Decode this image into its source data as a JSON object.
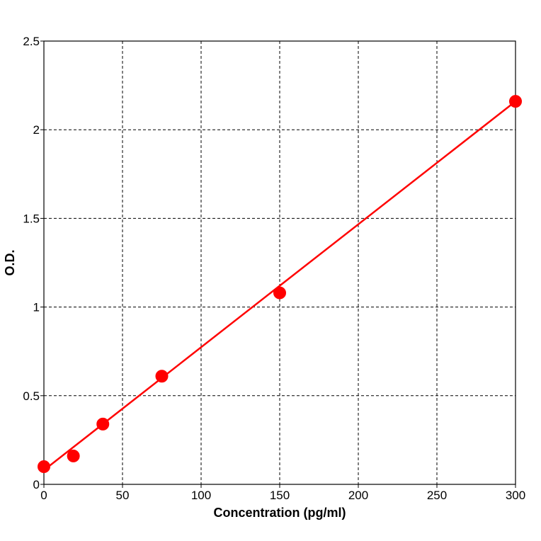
{
  "chart_data": {
    "type": "scatter",
    "title": "",
    "xlabel": "Concentration (pg/ml)",
    "ylabel": "O.D.",
    "xlim": [
      0,
      300
    ],
    "ylim": [
      0,
      2.5
    ],
    "x_ticks": [
      0,
      50,
      100,
      150,
      200,
      250,
      300
    ],
    "y_ticks": [
      0,
      0.5,
      1,
      1.5,
      2,
      2.5
    ],
    "x_tick_labels": [
      "0",
      "50",
      "100",
      "150",
      "200",
      "250",
      "300"
    ],
    "y_tick_labels": [
      "0",
      "0.5",
      "1",
      "1.5",
      "2",
      "2.5"
    ],
    "grid": true,
    "series": [
      {
        "x": [
          0,
          18.75,
          37.5,
          75,
          150,
          300
        ],
        "y": [
          0.1,
          0.16,
          0.34,
          0.61,
          1.08,
          2.16
        ],
        "color": "#ff0000",
        "marker": "circle"
      }
    ],
    "fit_line": {
      "x": [
        0,
        300
      ],
      "y": [
        0.08,
        2.16
      ],
      "color": "#ff0000"
    }
  }
}
